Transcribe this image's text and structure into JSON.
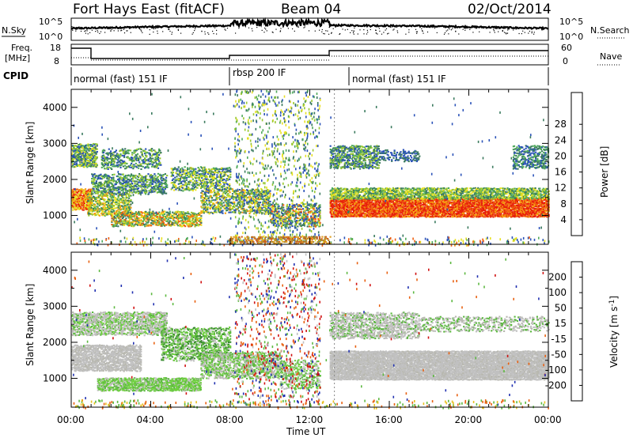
{
  "header": {
    "station": "Fort Hays East (fitACF)",
    "beam": "Beam 04",
    "date": "02/Oct/2014"
  },
  "status_panels": {
    "nsky_label": "N.Sky",
    "nsky_top": "10^5",
    "nsky_bottom": "10^0",
    "nsearch_label": "N.Search",
    "nsearch_top": "10^5",
    "nsearch_bottom": "10^0",
    "freq_label_1": "Freq.",
    "freq_label_2": "[MHz]",
    "freq_ticks": [
      "18",
      "8"
    ],
    "nave_label": "Nave",
    "nave_ticks": [
      "60",
      "0"
    ],
    "cpid_label": "CPID",
    "cpid_segments": [
      {
        "label": "normal (fast) 151 IF",
        "start": 0,
        "end": 8
      },
      {
        "label": "rbsp 200 IF",
        "start": 8,
        "end": 13
      },
      {
        "label": "normal (fast) 151 IF",
        "start": 13,
        "end": 24
      }
    ]
  },
  "chart_data": [
    {
      "type": "heatmap",
      "panel": "power",
      "xlabel": "Time UT",
      "ylabel": "Slant Range [km]",
      "x_ticks": [
        "00:00",
        "04:00",
        "08:00",
        "12:00",
        "16:00",
        "20:00",
        "00:00"
      ],
      "xlim": [
        0,
        24
      ],
      "y_ticks": [
        1000,
        2000,
        3000,
        4000
      ],
      "ylim": [
        200,
        4500
      ],
      "colorbar_label": "Power [dB]",
      "colorbar_ticks": [
        4,
        8,
        12,
        16,
        20,
        24,
        28
      ],
      "colorbar_colors": [
        "#0000ff",
        "#2a52b8",
        "#3a7a5e",
        "#4ea85a",
        "#98c830",
        "#e8e020",
        "#f5a010",
        "#f06010",
        "#e8200a"
      ]
    },
    {
      "type": "heatmap",
      "panel": "velocity",
      "xlabel": "Time UT",
      "ylabel": "Slant Range [km]",
      "x_ticks": [
        "00:00",
        "04:00",
        "08:00",
        "12:00",
        "16:00",
        "20:00",
        "00:00"
      ],
      "xlim": [
        0,
        24
      ],
      "y_ticks": [
        1000,
        2000,
        3000,
        4000
      ],
      "ylim": [
        200,
        4500
      ],
      "colorbar_label": "Velocity [m s^-1]",
      "colorbar_ticks": [
        200,
        100,
        50,
        15,
        -15,
        -50,
        -100,
        -200
      ],
      "colorbar_colors": [
        "#1a2ea8",
        "#2a6a55",
        "#3a8a30",
        "#70c838",
        "#c8c8c8",
        "#e8c020",
        "#f09010",
        "#f05010",
        "#e8100a"
      ]
    }
  ],
  "style": {
    "power_colors": [
      "#2a52b8",
      "#3a7a5e",
      "#4ea85a",
      "#98c830",
      "#e8e020",
      "#f5a010",
      "#f06010",
      "#e8200a"
    ],
    "velocity_colors": [
      "#c0c0c0",
      "#b8b8b0",
      "#5cb840",
      "#70d040",
      "#3a8a30",
      "#2030b0",
      "#e86010",
      "#d01010"
    ]
  }
}
